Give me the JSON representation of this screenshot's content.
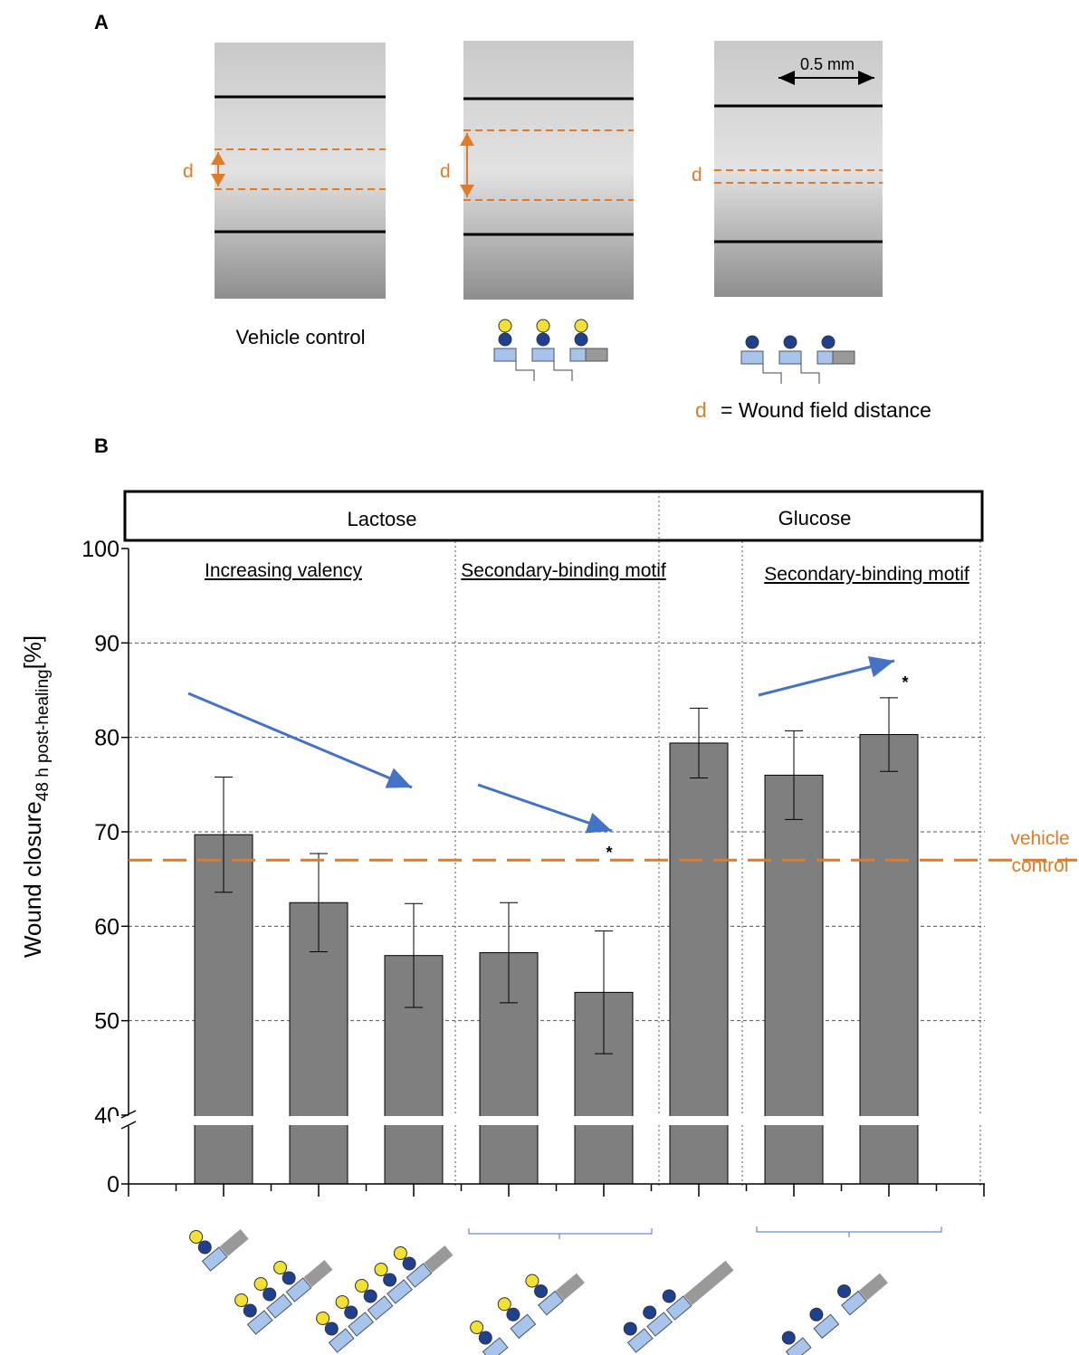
{
  "panel_a": {
    "label": "A",
    "images": [
      {
        "caption": "Vehicle control",
        "distance_label": "d"
      },
      {
        "distance_label": "d"
      },
      {
        "distance_label": "d",
        "scale_label": "0.5 mm"
      }
    ],
    "legend": {
      "symbol": "d",
      "text": "= Wound field distance"
    }
  },
  "chart_data": {
    "type": "bar",
    "panel_label": "B",
    "group_labels": [
      "Lactose",
      "Glucose"
    ],
    "section_labels": [
      "Increasing valency",
      "Secondary-binding motif",
      "Secondary-binding motif"
    ],
    "y_label": {
      "main": "Wound closure",
      "subscript": "48 h post-healing",
      "unit": "[%]"
    },
    "categories": [
      null,
      null,
      null,
      null,
      null,
      null,
      null,
      null
    ],
    "values": [
      69.7,
      62.5,
      56.9,
      57.2,
      53.0,
      79.4,
      76.0,
      80.3
    ],
    "errors": [
      6.1,
      5.2,
      5.5,
      5.3,
      6.5,
      3.7,
      4.7,
      3.9
    ],
    "color": "#7f7f7f",
    "ylim": [
      0,
      100
    ],
    "axis_break": [
      0,
      40
    ],
    "yticks": [
      0,
      40,
      50,
      60,
      70,
      80,
      90,
      100
    ],
    "grid": true,
    "reference_line": {
      "value": 67,
      "label": "vehicle control",
      "color": "#e07b2a"
    },
    "annotations": [
      "*",
      "*"
    ]
  }
}
